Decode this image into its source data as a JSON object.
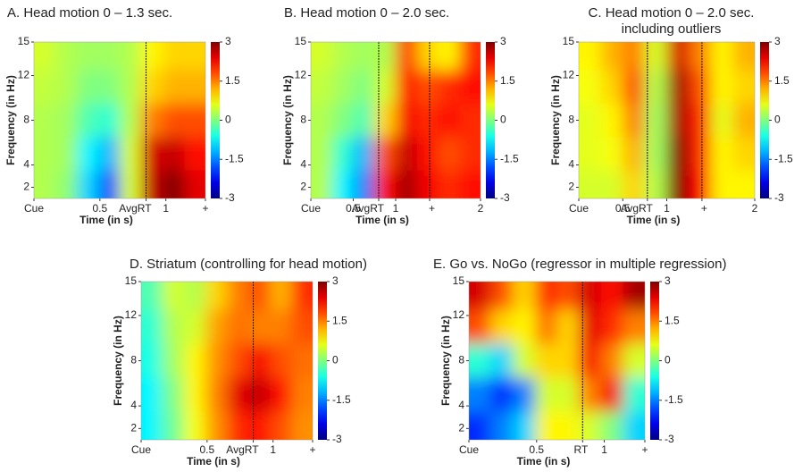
{
  "chart_data": [
    {
      "type": "heatmap",
      "title": "A. Head motion 0 – 1.3 sec.",
      "xlabel": "Time (in s)",
      "ylabel": "Frequency (in Hz)",
      "colormap": "jet",
      "xlim": [
        0,
        1.3
      ],
      "xticks": [
        {
          "value": 0,
          "label": "Cue"
        },
        0.5,
        {
          "value": 0.85,
          "label": "AvgRT"
        },
        1,
        {
          "value": 1.3,
          "label": "+"
        }
      ],
      "ylim": [
        1,
        15
      ],
      "yticks": [
        2,
        4,
        8,
        12,
        15
      ],
      "clim": [
        -3,
        3
      ],
      "cticks": [
        3,
        1.5,
        0,
        -1.5,
        -3
      ],
      "x": [
        0.08,
        0.24,
        0.41,
        0.57,
        0.73,
        0.89,
        1.06,
        1.22
      ],
      "y": [
        14,
        11,
        8,
        5,
        2
      ],
      "z": [
        [
          0.5,
          0.3,
          0.2,
          0.2,
          0.3,
          0.8,
          1.0,
          1.0
        ],
        [
          0.4,
          0.3,
          0.0,
          0.0,
          0.3,
          1.0,
          1.2,
          1.2
        ],
        [
          0.3,
          0.2,
          -0.3,
          -0.5,
          0.3,
          1.5,
          1.8,
          1.8
        ],
        [
          0.3,
          0.2,
          -0.8,
          -1.2,
          0.5,
          2.5,
          2.6,
          2.2
        ],
        [
          0.3,
          0.1,
          -1.0,
          -1.8,
          0.5,
          2.6,
          3.0,
          2.4
        ]
      ]
    },
    {
      "type": "heatmap",
      "title": "B. Head motion 0 – 2.0 sec.",
      "xlabel": "Time (in s)",
      "ylabel": "Frequency (in Hz)",
      "colormap": "jet",
      "xlim": [
        0,
        2
      ],
      "xticks": [
        {
          "value": 0,
          "label": "Cue"
        },
        0.5,
        {
          "value": 0.8,
          "label": "AvgRT"
        },
        1,
        {
          "value": 1.4,
          "label": "+"
        },
        2
      ],
      "ylim": [
        1,
        15
      ],
      "yticks": [
        2,
        4,
        8,
        12,
        15
      ],
      "clim": [
        -3,
        3
      ],
      "cticks": [
        3,
        1.5,
        0,
        -1.5,
        -3
      ],
      "x": [
        0.125,
        0.375,
        0.625,
        0.875,
        1.125,
        1.375,
        1.625,
        1.875
      ],
      "y": [
        14,
        11,
        8,
        5,
        2
      ],
      "z": [
        [
          0.5,
          0.3,
          0.2,
          0.3,
          2.0,
          1.0,
          0.8,
          2.0
        ],
        [
          0.4,
          0.2,
          0.0,
          0.5,
          2.2,
          1.8,
          2.0,
          2.2
        ],
        [
          0.3,
          0.0,
          -0.3,
          1.0,
          2.3,
          2.0,
          2.2,
          2.0
        ],
        [
          0.3,
          -0.5,
          -1.2,
          1.8,
          2.6,
          2.2,
          1.8,
          2.0
        ],
        [
          0.3,
          -0.8,
          -1.5,
          2.2,
          2.8,
          2.3,
          2.0,
          2.2
        ]
      ]
    },
    {
      "type": "heatmap",
      "title": "C. Head motion 0 – 2.0 sec.",
      "subtitle": "including outliers",
      "xlabel": "Time (in s)",
      "ylabel": "Frequency (in Hz)",
      "colormap": "jet",
      "xlim": [
        0,
        2
      ],
      "xticks": [
        {
          "value": 0,
          "label": "Cue"
        },
        0.5,
        {
          "value": 0.78,
          "label": "AvgRT"
        },
        1,
        {
          "value": 1.4,
          "label": "+"
        },
        2
      ],
      "ylim": [
        1,
        15
      ],
      "yticks": [
        2,
        4,
        8,
        12,
        15
      ],
      "clim": [
        -3,
        3
      ],
      "cticks": [
        3,
        1.5,
        0,
        -1.5,
        -3
      ],
      "x": [
        0.125,
        0.375,
        0.625,
        0.875,
        1.125,
        1.375,
        1.625,
        1.875
      ],
      "y": [
        14,
        11,
        8,
        5,
        2
      ],
      "z": [
        [
          0.8,
          1.2,
          1.5,
          0.5,
          2.5,
          1.5,
          0.8,
          1.2
        ],
        [
          0.7,
          1.0,
          1.8,
          0.3,
          2.8,
          1.8,
          0.8,
          1.0
        ],
        [
          0.6,
          0.8,
          1.5,
          0.2,
          2.8,
          2.0,
          0.6,
          1.2
        ],
        [
          0.6,
          0.7,
          1.2,
          0.2,
          3.0,
          2.0,
          0.8,
          1.0
        ],
        [
          0.5,
          0.5,
          1.0,
          0.3,
          3.0,
          2.2,
          0.8,
          0.8
        ]
      ]
    },
    {
      "type": "heatmap",
      "title": "D. Striatum (controlling for head motion)",
      "xlabel": "Time (in s)",
      "ylabel": "Frequency (in Hz)",
      "colormap": "jet",
      "xlim": [
        0,
        1.3
      ],
      "xticks": [
        {
          "value": 0,
          "label": "Cue"
        },
        0.5,
        {
          "value": 0.85,
          "label": "AvgRT"
        },
        1,
        {
          "value": 1.3,
          "label": "+"
        }
      ],
      "ylim": [
        1,
        15
      ],
      "yticks": [
        2,
        4,
        8,
        12,
        15
      ],
      "clim": [
        -3,
        3
      ],
      "cticks": [
        3,
        1.5,
        0,
        -1.5,
        -3
      ],
      "x": [
        0.08,
        0.24,
        0.41,
        0.57,
        0.73,
        0.89,
        1.06,
        1.22
      ],
      "y": [
        14,
        11,
        8,
        5,
        2
      ],
      "z": [
        [
          -0.3,
          0.5,
          0.3,
          1.0,
          1.5,
          1.8,
          1.2,
          2.0
        ],
        [
          -0.5,
          0.3,
          0.5,
          1.3,
          1.6,
          1.5,
          1.5,
          1.8
        ],
        [
          -0.6,
          0.2,
          0.8,
          1.4,
          1.8,
          2.3,
          1.8,
          1.6
        ],
        [
          -0.8,
          0.0,
          0.8,
          1.5,
          2.4,
          2.6,
          2.2,
          1.5
        ],
        [
          -0.8,
          -0.1,
          0.7,
          1.4,
          2.0,
          2.2,
          1.8,
          1.4
        ]
      ]
    },
    {
      "type": "heatmap",
      "title": "E. Go vs. NoGo (regressor in multiple regression)",
      "xlabel": "Time (in s)",
      "ylabel": "Frequency (in Hz)",
      "colormap": "jet",
      "xlim": [
        0,
        1.3
      ],
      "xticks": [
        {
          "value": 0,
          "label": "Cue"
        },
        0.5,
        {
          "value": 0.84,
          "label": "RT"
        },
        1,
        {
          "value": 1.3,
          "label": "+"
        }
      ],
      "ylim": [
        1,
        15
      ],
      "yticks": [
        2,
        4,
        8,
        12,
        15
      ],
      "clim": [
        -3,
        3
      ],
      "cticks": [
        3,
        1.5,
        0,
        -1.5,
        -3
      ],
      "x": [
        0.08,
        0.24,
        0.41,
        0.57,
        0.73,
        0.89,
        1.06,
        1.22
      ],
      "y": [
        14,
        11,
        8,
        5,
        2
      ],
      "z": [
        [
          2.5,
          1.8,
          1.0,
          2.0,
          1.8,
          2.5,
          2.2,
          2.8
        ],
        [
          1.8,
          1.0,
          0.8,
          1.6,
          1.0,
          2.4,
          2.0,
          1.5
        ],
        [
          -0.5,
          -1.0,
          0.5,
          1.0,
          1.0,
          2.3,
          1.5,
          0.5
        ],
        [
          -1.5,
          -2.0,
          -1.5,
          0.5,
          0.5,
          1.5,
          2.3,
          -0.5
        ],
        [
          -2.0,
          -1.5,
          -1.0,
          0.8,
          0.8,
          0.5,
          0.0,
          -1.0
        ]
      ]
    }
  ]
}
